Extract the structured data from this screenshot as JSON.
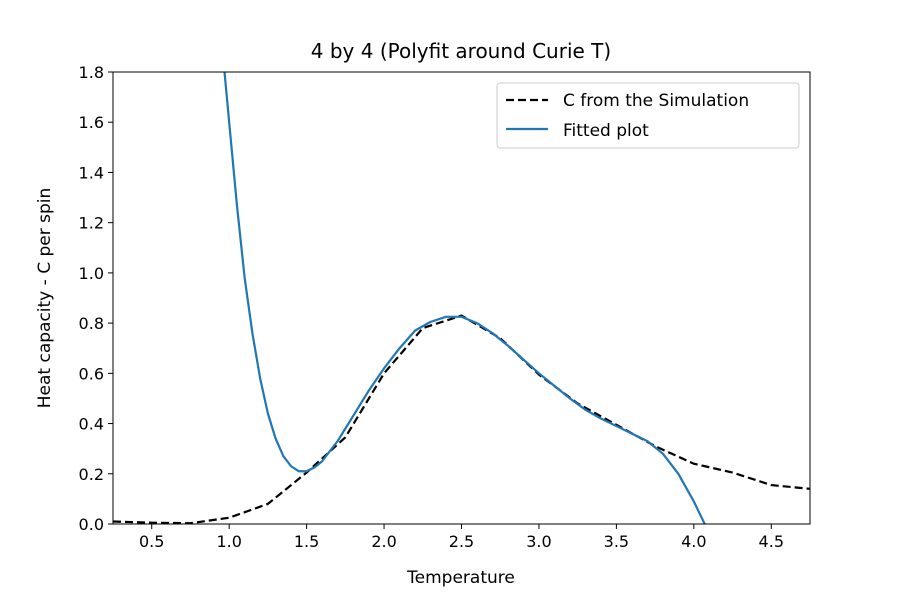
{
  "chart_data": {
    "type": "line",
    "title": "4 by 4 (Polyfit around Curie T)",
    "xlabel": "Temperature",
    "ylabel": "Heat capacity - C per spin",
    "xlim": [
      0.25,
      4.75
    ],
    "ylim": [
      0.0,
      1.8
    ],
    "xticks": [
      0.5,
      1.0,
      1.5,
      2.0,
      2.5,
      3.0,
      3.5,
      4.0,
      4.5
    ],
    "xtick_labels": [
      "0.5",
      "1.0",
      "1.5",
      "2.0",
      "2.5",
      "3.0",
      "3.5",
      "4.0",
      "4.5"
    ],
    "yticks": [
      0.0,
      0.2,
      0.4,
      0.6,
      0.8,
      1.0,
      1.2,
      1.4,
      1.6,
      1.8
    ],
    "ytick_labels": [
      "0.0",
      "0.2",
      "0.4",
      "0.6",
      "0.8",
      "1.0",
      "1.2",
      "1.4",
      "1.6",
      "1.8"
    ],
    "grid": false,
    "legend_position": "top-right",
    "series": [
      {
        "name": "C from the Simulation",
        "style": "dashed",
        "color": "#000000",
        "x": [
          0.25,
          0.5,
          0.75,
          1.0,
          1.25,
          1.5,
          1.75,
          2.0,
          2.25,
          2.5,
          2.75,
          3.0,
          3.25,
          3.5,
          3.75,
          4.0,
          4.25,
          4.5,
          4.75
        ],
        "y": [
          0.01,
          0.005,
          0.003,
          0.025,
          0.08,
          0.205,
          0.345,
          0.6,
          0.78,
          0.83,
          0.74,
          0.595,
          0.48,
          0.395,
          0.31,
          0.24,
          0.205,
          0.155,
          0.14
        ]
      },
      {
        "name": "Fitted plot",
        "style": "solid",
        "color": "#1f77b4",
        "x": [
          0.97,
          1.0,
          1.05,
          1.1,
          1.15,
          1.2,
          1.25,
          1.3,
          1.35,
          1.4,
          1.45,
          1.5,
          1.55,
          1.6,
          1.7,
          1.8,
          1.9,
          2.0,
          2.1,
          2.2,
          2.3,
          2.4,
          2.5,
          2.6,
          2.7,
          2.8,
          2.9,
          3.0,
          3.1,
          3.2,
          3.3,
          3.4,
          3.5,
          3.6,
          3.7,
          3.8,
          3.9,
          4.0,
          4.07
        ],
        "y": [
          1.8,
          1.6,
          1.27,
          0.98,
          0.76,
          0.58,
          0.44,
          0.34,
          0.27,
          0.23,
          0.21,
          0.21,
          0.225,
          0.25,
          0.33,
          0.43,
          0.53,
          0.62,
          0.7,
          0.77,
          0.805,
          0.825,
          0.825,
          0.8,
          0.76,
          0.71,
          0.655,
          0.6,
          0.55,
          0.5,
          0.455,
          0.42,
          0.39,
          0.36,
          0.33,
          0.28,
          0.2,
          0.09,
          0.0
        ]
      }
    ]
  }
}
